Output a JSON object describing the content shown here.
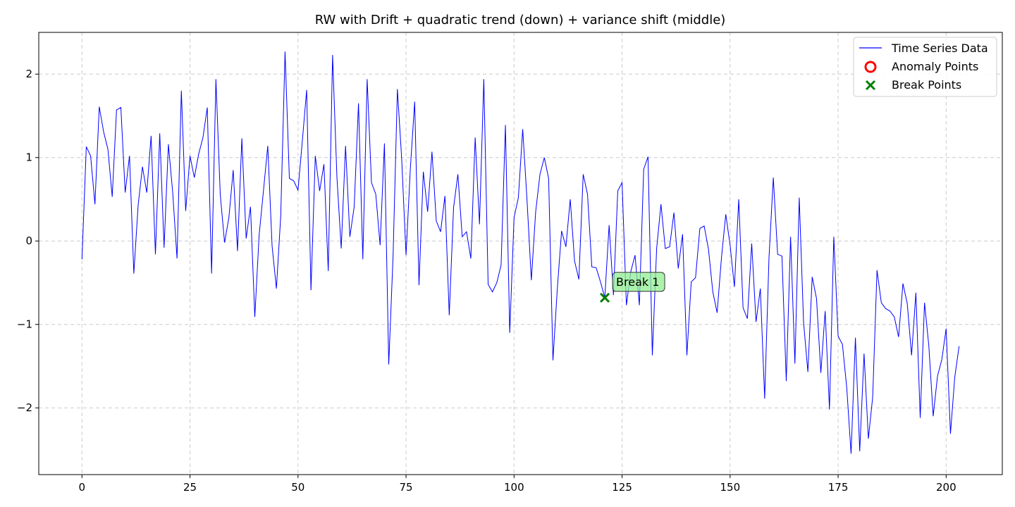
{
  "chart_data": {
    "type": "line",
    "title": "RW with Drift + quadratic trend (down) + variance shift (middle)",
    "xlabel": "",
    "ylabel": "",
    "xlim": [
      -10,
      213
    ],
    "ylim": [
      -2.8,
      2.5
    ],
    "xticks": [
      0,
      25,
      50,
      75,
      100,
      125,
      150,
      175,
      200
    ],
    "yticks": [
      -2,
      -1,
      0,
      1,
      2
    ],
    "ytick_labels": [
      "−2",
      "−1",
      "0",
      "1",
      "2"
    ],
    "grid": true,
    "legend_position": "top-right",
    "legend": [
      {
        "label": "Time Series Data",
        "marker": "line",
        "color": "#0000ff"
      },
      {
        "label": "Anomaly Points",
        "marker": "circle",
        "color": "#ff0000"
      },
      {
        "label": "Break Points",
        "marker": "x",
        "color": "#008000"
      }
    ],
    "series": [
      {
        "name": "Time Series Data",
        "color": "#0000ff",
        "x_start": 0,
        "values": [
          -0.22,
          1.13,
          1.02,
          0.44,
          1.61,
          1.31,
          1.1,
          0.53,
          1.57,
          1.6,
          0.58,
          1.02,
          -0.39,
          0.43,
          0.89,
          0.58,
          1.26,
          -0.16,
          1.29,
          -0.08,
          1.16,
          0.58,
          -0.21,
          1.8,
          0.36,
          1.02,
          0.76,
          1.04,
          1.24,
          1.6,
          -0.39,
          1.94,
          0.56,
          -0.02,
          0.28,
          0.85,
          -0.12,
          1.23,
          0.03,
          0.41,
          -0.91,
          0.07,
          0.6,
          1.14,
          -0.06,
          -0.57,
          0.3,
          2.27,
          0.75,
          0.72,
          0.61,
          1.2,
          1.81,
          -0.59,
          1.02,
          0.6,
          0.92,
          -0.36,
          2.23,
          0.77,
          -0.09,
          1.14,
          0.05,
          0.41,
          1.65,
          -0.22,
          1.94,
          0.7,
          0.56,
          -0.05,
          1.17,
          -1.48,
          -0.18,
          1.82,
          0.98,
          -0.17,
          0.87,
          1.67,
          -0.53,
          0.83,
          0.35,
          1.07,
          0.24,
          0.11,
          0.54,
          -0.89,
          0.4,
          0.8,
          0.05,
          0.11,
          -0.21,
          1.24,
          0.2,
          1.94,
          -0.52,
          -0.61,
          -0.5,
          -0.29,
          1.39,
          -1.1,
          0.28,
          0.52,
          1.34,
          0.49,
          -0.47,
          0.35,
          0.8,
          1.0,
          0.75,
          -1.43,
          -0.58,
          0.12,
          -0.07,
          0.5,
          -0.24,
          -0.46,
          0.8,
          0.56,
          -0.31,
          -0.32,
          -0.49,
          -0.68,
          0.19,
          -0.65,
          0.6,
          0.7,
          -0.77,
          -0.37,
          -0.17,
          -0.77,
          0.86,
          1.01,
          -1.37,
          -0.09,
          0.44,
          -0.09,
          -0.07,
          0.34,
          -0.33,
          0.08,
          -1.37,
          -0.49,
          -0.44,
          0.15,
          0.18,
          -0.1,
          -0.61,
          -0.86,
          -0.2,
          0.32,
          -0.05,
          -0.55,
          0.5,
          -0.8,
          -0.93,
          -0.03,
          -0.97,
          -0.57,
          -1.89,
          -0.2,
          0.76,
          -0.16,
          -0.18,
          -1.68,
          0.05,
          -1.47,
          0.52,
          -0.97,
          -1.57,
          -0.43,
          -0.69,
          -1.58,
          -0.84,
          -2.02,
          0.05,
          -1.14,
          -1.24,
          -1.76,
          -2.55,
          -1.16,
          -2.52,
          -1.35,
          -2.37,
          -1.87,
          -0.35,
          -0.74,
          -0.81,
          -0.84,
          -0.91,
          -1.15,
          -0.51,
          -0.75,
          -1.37,
          -0.62,
          -2.12,
          -0.74,
          -1.26,
          -2.1,
          -1.62,
          -1.42,
          -1.05,
          -2.31,
          -1.63,
          -1.26
        ]
      }
    ],
    "anomaly_points": [],
    "break_points": [
      {
        "x": 121,
        "y": -0.68,
        "label": "Break 1"
      }
    ]
  }
}
